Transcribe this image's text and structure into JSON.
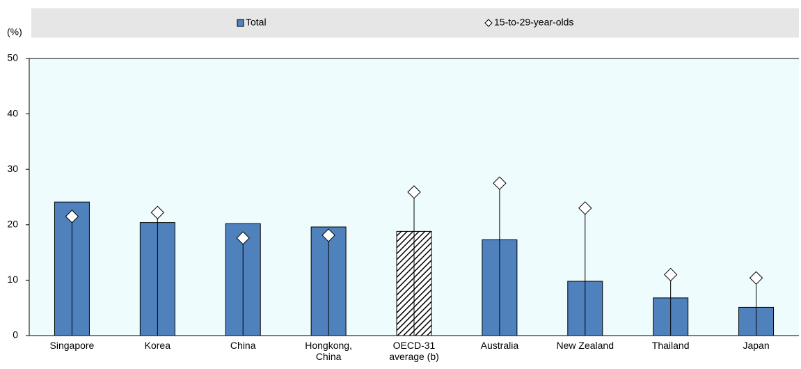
{
  "chart_data": {
    "type": "bar",
    "y_label": "(%)",
    "categories": [
      "Singapore",
      "Korea",
      "China",
      "Hongkong, China",
      "OECD-31 average (b)",
      "Australia",
      "New Zealand",
      "Thailand",
      "Japan"
    ],
    "series": [
      {
        "name": "Total",
        "color": "#4f81bd",
        "values": [
          24.1,
          20.4,
          20.2,
          19.6,
          18.8,
          17.3,
          9.8,
          6.8,
          5.1
        ],
        "hatched": [
          false,
          false,
          false,
          false,
          true,
          false,
          false,
          false,
          false
        ]
      },
      {
        "name": "15-to-29-year-olds",
        "type": "marker",
        "color": "#ffffff",
        "values": [
          21.5,
          22.2,
          17.6,
          18.1,
          25.9,
          27.5,
          23.0,
          11.0,
          10.4
        ]
      }
    ],
    "ylim": [
      0,
      50
    ],
    "yticks": [
      0,
      10,
      20,
      30,
      40,
      50
    ],
    "plot_background": "#effcfe",
    "legend_background": "#e6e6e6"
  }
}
